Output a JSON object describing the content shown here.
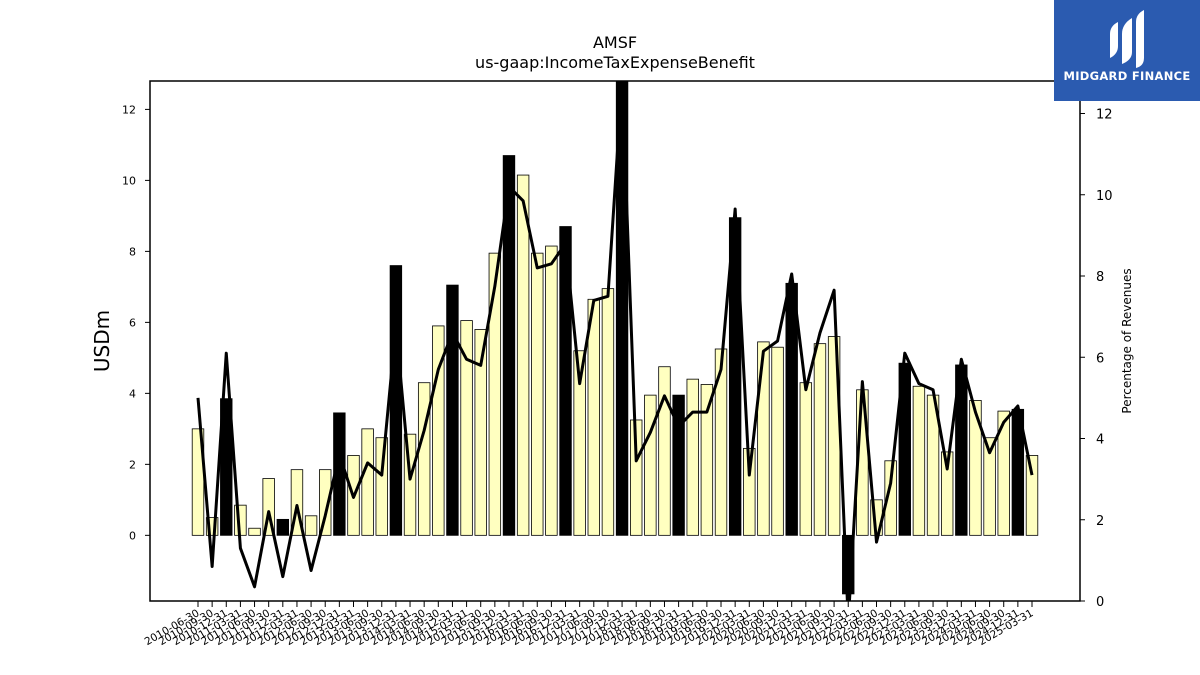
{
  "header": {
    "ticker": "AMSF",
    "metric": "us-gaap:IncomeTaxExpenseBenefit"
  },
  "logo": {
    "text": "MIDGARD FINANCE",
    "color": "#2b5bb0"
  },
  "colors": {
    "bar_light": "#ffffc0",
    "bar_dark": "#000000",
    "line": "#000000"
  },
  "chart_data": {
    "type": "bar",
    "title": "AMSF",
    "subtitle": "us-gaap:IncomeTaxExpenseBenefit",
    "ylabel": "USDm",
    "y2label": "Percentage of Revenues",
    "ylim": [
      -1.85,
      12.8
    ],
    "y2lim": [
      0,
      12.8
    ],
    "yticks": [
      0,
      2,
      4,
      6,
      8,
      10,
      12
    ],
    "y2ticks": [
      0,
      2,
      4,
      6,
      8,
      10,
      12
    ],
    "categories": [
      "2010-06-30",
      "2010-09-30",
      "2010-12-31",
      "2011-03-31",
      "2011-06-30",
      "2011-09-30",
      "2011-12-31",
      "2012-03-31",
      "2012-06-30",
      "2012-09-30",
      "2012-12-31",
      "2013-03-31",
      "2013-06-30",
      "2013-09-30",
      "2013-12-31",
      "2014-03-31",
      "2014-06-30",
      "2014-09-30",
      "2014-12-31",
      "2015-03-31",
      "2015-06-30",
      "2015-09-30",
      "2015-12-31",
      "2016-03-31",
      "2016-06-30",
      "2016-09-30",
      "2016-12-31",
      "2017-03-31",
      "2017-06-30",
      "2017-09-30",
      "2017-12-31",
      "2018-03-31",
      "2018-06-30",
      "2018-09-30",
      "2018-12-31",
      "2019-03-31",
      "2019-06-30",
      "2019-09-30",
      "2019-12-31",
      "2020-03-31",
      "2020-06-30",
      "2020-09-30",
      "2020-12-31",
      "2021-03-31",
      "2021-06-30",
      "2021-09-30",
      "2021-12-31",
      "2022-03-31",
      "2022-06-30",
      "2022-09-30",
      "2022-12-31",
      "2023-03-31",
      "2023-06-30",
      "2023-09-30",
      "2023-12-31",
      "2024-03-31",
      "2024-06-30",
      "2024-09-30",
      "2024-12-31",
      "2025-03-31"
    ],
    "xtick_labels": [
      "2010-06-30",
      "2010-09-30",
      "2010-12-31",
      "2011-03-31",
      "2011-06-30",
      "2011-09-30",
      "2011-12-31",
      "2012-03-31",
      "2012-06-30",
      "2012-09-30",
      "2012-12-31",
      "2013-03-31",
      "2013-06-30",
      "2013-09-30",
      "2013-12-31",
      "2014-03-31",
      "2014-06-30",
      "2014-09-30",
      "2014-12-31",
      "2015-03-31",
      "2015-06-30",
      "2015-09-30",
      "2015-12-31",
      "2016-03-31",
      "2016-06-30",
      "2016-09-30",
      "2016-12-31",
      "2017-03-31",
      "2017-06-30",
      "2017-09-30",
      "2017-12-31",
      "2018-03-31",
      "2018-06-30",
      "2018-09-30",
      "2018-12-31",
      "2019-03-31",
      "2019-06-30",
      "2019-09-30",
      "2019-12-31",
      "2020-03-31",
      "2020-06-30",
      "2020-09-30",
      "2020-12-31",
      "2021-03-31",
      "2021-06-30",
      "2021-09-30",
      "2021-12-31",
      "2022-03-31",
      "2022-06-30",
      "2022-09-30",
      "2022-12-31",
      "2023-03-31",
      "2023-06-30",
      "2023-09-30",
      "2023-12-31",
      "2024-03-31",
      "2024-06-30",
      "2024-09-30",
      "2024-12-31",
      "2025-03-31"
    ],
    "series": [
      {
        "values": [
          3.0,
          0.5,
          3.85,
          0.85,
          0.2,
          1.6,
          0.45,
          1.85,
          0.55,
          1.85,
          3.45,
          2.25,
          3.0,
          2.75,
          7.6,
          2.85,
          4.3,
          5.9,
          7.05,
          6.05,
          5.8,
          7.95,
          10.7,
          10.15,
          7.95,
          8.15,
          8.7,
          5.2,
          6.65,
          6.95,
          12.8,
          3.25,
          3.95,
          4.75,
          3.95,
          4.4,
          4.25,
          5.25,
          8.95,
          2.45,
          5.45,
          5.3,
          7.1,
          4.3,
          5.4,
          5.6,
          -1.65,
          4.1,
          1.0,
          2.1,
          4.85,
          4.2,
          3.95,
          2.35,
          4.8,
          3.8,
          2.75,
          3.5,
          3.55,
          2.25
        ],
        "highlight": [
          false,
          false,
          true,
          false,
          false,
          false,
          true,
          false,
          false,
          false,
          true,
          false,
          false,
          false,
          true,
          false,
          false,
          false,
          true,
          false,
          false,
          false,
          true,
          false,
          false,
          false,
          true,
          false,
          false,
          false,
          true,
          false,
          false,
          false,
          true,
          false,
          false,
          false,
          true,
          false,
          false,
          false,
          true,
          false,
          false,
          false,
          true,
          false,
          false,
          false,
          true,
          false,
          false,
          false,
          true,
          false,
          false,
          false,
          true,
          false
        ]
      },
      {
        "axis": "right",
        "values": [
          5.0,
          0.85,
          6.1,
          1.3,
          0.35,
          2.2,
          0.6,
          2.35,
          0.75,
          2.1,
          3.6,
          2.55,
          3.4,
          3.1,
          6.75,
          3.0,
          4.2,
          5.7,
          6.6,
          5.95,
          5.8,
          7.75,
          10.2,
          9.85,
          8.2,
          8.3,
          8.8,
          5.35,
          7.4,
          7.5,
          12.8,
          3.45,
          4.15,
          5.05,
          4.3,
          4.65,
          4.65,
          5.7,
          9.65,
          3.1,
          6.15,
          6.4,
          8.05,
          5.2,
          6.6,
          7.65,
          -0.5,
          5.4,
          1.45,
          2.9,
          6.1,
          5.35,
          5.2,
          3.25,
          5.95,
          4.65,
          3.65,
          4.4,
          4.8,
          3.1
        ]
      }
    ]
  }
}
